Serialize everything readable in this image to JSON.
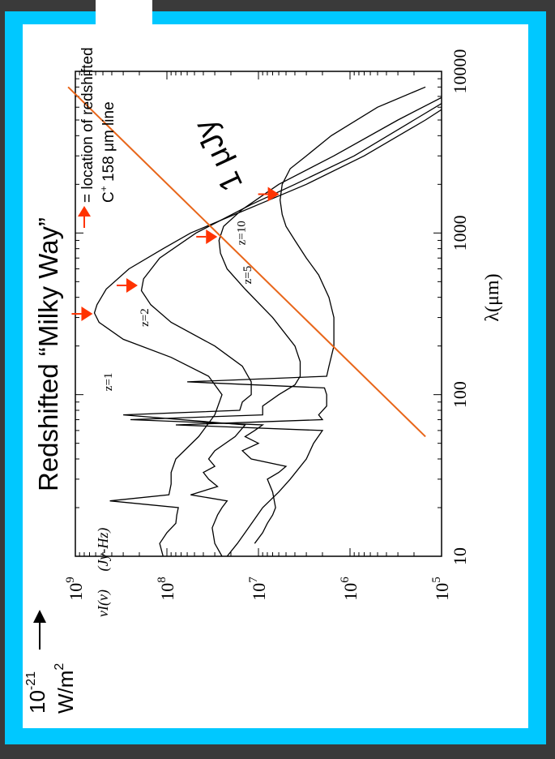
{
  "slide": {
    "title": "Redshifted “Milky Way”",
    "legend_marker_text": "= location of redshifted",
    "legend_line_text_base": "C",
    "legend_line_text_sup": "+",
    "legend_line_text_rest": " 158 μm line",
    "flux_limit_label": "1 μJy",
    "unit_conversion": {
      "value_base": "10",
      "value_exp": "-21",
      "unit_base": "W/m",
      "unit_exp": "2"
    },
    "colors": {
      "frame_cyan": "#00c8ff",
      "frame_shadow": "#3a3a3a",
      "arrow_red": "#ff3300",
      "flux_line_orange": "#e8661a",
      "curve_black": "#000000"
    }
  },
  "chart_data": {
    "type": "line",
    "x_scale": "log",
    "y_scale": "log",
    "xlim": [
      10,
      10000
    ],
    "ylim": [
      100000,
      1000000000
    ],
    "xlabel": "λ(μm)",
    "ylabel": "νI(ν)     (Jy-Hz)",
    "x_ticks": [
      "10",
      "100",
      "1000",
      "10000"
    ],
    "y_ticks_base": "10",
    "y_ticks_exp": [
      "9",
      "8",
      "7",
      "6",
      "5"
    ],
    "series": [
      {
        "name": "z=1",
        "label_at": [
          120,
          400000000
        ],
        "points": [
          [
            10,
            110000000
          ],
          [
            12,
            120000000
          ],
          [
            14,
            100000000
          ],
          [
            16,
            80000000
          ],
          [
            18,
            78000000
          ],
          [
            20,
            75000000
          ],
          [
            22,
            420000000
          ],
          [
            24,
            95000000
          ],
          [
            28,
            90000000
          ],
          [
            33,
            90000000
          ],
          [
            40,
            80000000
          ],
          [
            55,
            45000000
          ],
          [
            75,
            30000000
          ],
          [
            100,
            25000000
          ],
          [
            130,
            35000000
          ],
          [
            170,
            90000000
          ],
          [
            220,
            300000000
          ],
          [
            280,
            550000000
          ],
          [
            320,
            620000000
          ],
          [
            360,
            580000000
          ],
          [
            450,
            460000000
          ],
          [
            600,
            260000000
          ],
          [
            800,
            110000000
          ],
          [
            1000,
            55000000
          ],
          [
            1500,
            10000000
          ],
          [
            2000,
            3000000
          ],
          [
            3000,
            700000
          ],
          [
            5000,
            150000
          ],
          [
            7000,
            60000
          ]
        ]
      },
      {
        "name": "z=2",
        "label_at": [
          300,
          160000000
        ],
        "points": [
          [
            10,
            25000000
          ],
          [
            12,
            30000000
          ],
          [
            15,
            32000000
          ],
          [
            18,
            28000000
          ],
          [
            20,
            25000000
          ],
          [
            22,
            22000000
          ],
          [
            24,
            55000000
          ],
          [
            27,
            28000000
          ],
          [
            30,
            35000000
          ],
          [
            33,
            40000000
          ],
          [
            36,
            30000000
          ],
          [
            40,
            35000000
          ],
          [
            45,
            30000000
          ],
          [
            55,
            18000000
          ],
          [
            65,
            14000000
          ],
          [
            75,
            300000000
          ],
          [
            80,
            16000000
          ],
          [
            90,
            15000000
          ],
          [
            100,
            12000000
          ],
          [
            120,
            12000000
          ],
          [
            150,
            15000000
          ],
          [
            200,
            30000000
          ],
          [
            280,
            90000000
          ],
          [
            360,
            150000000
          ],
          [
            440,
            190000000
          ],
          [
            520,
            180000000
          ],
          [
            700,
            120000000
          ],
          [
            1000,
            48000000
          ],
          [
            1500,
            12000000
          ],
          [
            2000,
            4000000
          ],
          [
            3000,
            900000
          ],
          [
            5000,
            200000
          ],
          [
            8000,
            50000
          ]
        ]
      },
      {
        "name": "z=5",
        "label_at": [
          550,
          12000000
        ],
        "points": [
          [
            12,
            11000000
          ],
          [
            14,
            9000000
          ],
          [
            16,
            8000000
          ],
          [
            18,
            7000000
          ],
          [
            20,
            6500000
          ],
          [
            25,
            7000000
          ],
          [
            30,
            8000000
          ],
          [
            33,
            6000000
          ],
          [
            36,
            5000000
          ],
          [
            40,
            12000000
          ],
          [
            45,
            15000000
          ],
          [
            50,
            10000000
          ],
          [
            55,
            14000000
          ],
          [
            60,
            11000000
          ],
          [
            65,
            9000000
          ],
          [
            70,
            250000000
          ],
          [
            75,
            9000000
          ],
          [
            85,
            9000000
          ],
          [
            100,
            6000000
          ],
          [
            115,
            4000000
          ],
          [
            130,
            3500000
          ],
          [
            160,
            3500000
          ],
          [
            200,
            4000000
          ],
          [
            300,
            7000000
          ],
          [
            450,
            14000000
          ],
          [
            600,
            22000000
          ],
          [
            750,
            26000000
          ],
          [
            900,
            27000000
          ],
          [
            1100,
            24000000
          ],
          [
            1400,
            15000000
          ],
          [
            2000,
            6000000
          ],
          [
            3000,
            1500000
          ],
          [
            5000,
            300000
          ],
          [
            8000,
            60000
          ]
        ]
      },
      {
        "name": "z=10",
        "label_at": [
          1000,
          14000000
        ],
        "points": [
          [
            10,
            22000000
          ],
          [
            12,
            17000000
          ],
          [
            14,
            14000000
          ],
          [
            17,
            11000000
          ],
          [
            20,
            9000000
          ],
          [
            25,
            6000000
          ],
          [
            30,
            4500000
          ],
          [
            40,
            3000000
          ],
          [
            50,
            2500000
          ],
          [
            60,
            2000000
          ],
          [
            65,
            80000000
          ],
          [
            70,
            2000000
          ],
          [
            75,
            2200000
          ],
          [
            85,
            1800000
          ],
          [
            100,
            1800000
          ],
          [
            110,
            1900000
          ],
          [
            120,
            60000000
          ],
          [
            130,
            1800000
          ],
          [
            150,
            1700000
          ],
          [
            200,
            1500000
          ],
          [
            260,
            1500000
          ],
          [
            300,
            1500000
          ],
          [
            400,
            1700000
          ],
          [
            550,
            2200000
          ],
          [
            700,
            3000000
          ],
          [
            900,
            4000000
          ],
          [
            1100,
            5000000
          ],
          [
            1300,
            5500000
          ],
          [
            1600,
            5800000
          ],
          [
            2000,
            5500000
          ],
          [
            2500,
            4500000
          ],
          [
            3000,
            3000000
          ],
          [
            4000,
            1600000
          ],
          [
            6000,
            500000
          ],
          [
            8000,
            150000
          ]
        ]
      }
    ],
    "flux_limit_line": {
      "label": "1 μJy",
      "points": [
        [
          55,
          150000
        ],
        [
          8000,
          1200000000
        ]
      ]
    },
    "cplus_158um_markers": [
      {
        "z": "z=1",
        "x": 316,
        "y": 620000000
      },
      {
        "z": "z=2",
        "x": 474,
        "y": 200000000
      },
      {
        "z": "z=5",
        "x": 948,
        "y": 27000000
      },
      {
        "z": "z=10",
        "x": 1738,
        "y": 5700000
      }
    ]
  }
}
